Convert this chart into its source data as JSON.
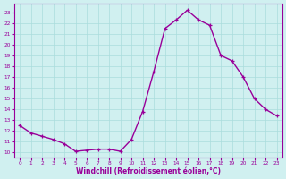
{
  "x": [
    0,
    1,
    2,
    3,
    4,
    5,
    6,
    7,
    8,
    9,
    10,
    11,
    12,
    13,
    14,
    15,
    16,
    17,
    18,
    19,
    20,
    21,
    22,
    23
  ],
  "y": [
    12.5,
    11.8,
    11.5,
    11.2,
    10.8,
    10.1,
    10.2,
    10.3,
    10.3,
    10.1,
    11.2,
    13.8,
    17.5,
    21.5,
    22.3,
    23.2,
    22.3,
    21.8,
    19.0,
    18.5,
    17.0,
    15.0,
    14.0,
    13.4
  ],
  "line_color": "#990099",
  "marker": "+",
  "bg_color": "#d0f0f0",
  "grid_color": "#aadddd",
  "xlabel": "Windchill (Refroidissement éolien,°C)",
  "ylabel_ticks": [
    10,
    11,
    12,
    13,
    14,
    15,
    16,
    17,
    18,
    19,
    20,
    21,
    22,
    23
  ],
  "xlim": [
    -0.5,
    23.5
  ],
  "ylim": [
    9.5,
    23.8
  ],
  "title": ""
}
